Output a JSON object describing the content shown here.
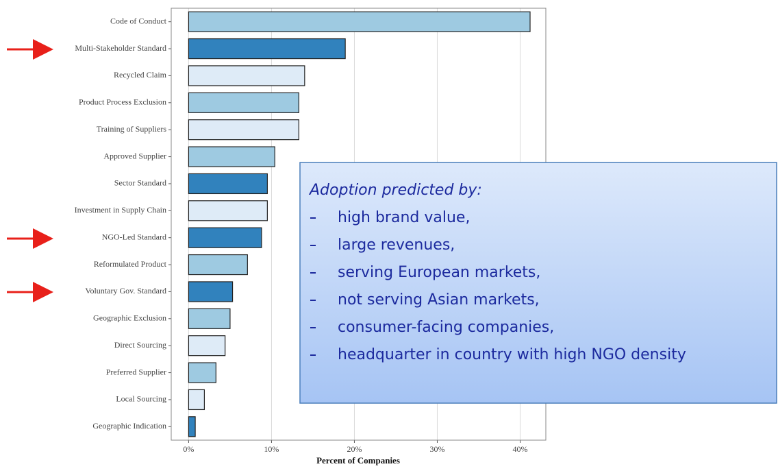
{
  "chart_data": {
    "type": "bar",
    "orientation": "horizontal",
    "categories": [
      "Code of Conduct",
      "Multi-Stakeholder Standard",
      "Recycled Claim",
      "Product Process Exclusion",
      "Training of Suppliers",
      "Approved Supplier",
      "Sector Standard",
      "Investment in Supply Chain",
      "NGO-Led Standard",
      "Reformulated Product",
      "Voluntary Gov. Standard",
      "Geographic Exclusion",
      "Direct Sourcing",
      "Preferred Supplier",
      "Local Sourcing",
      "Geographic Indication"
    ],
    "values": [
      41.2,
      18.9,
      14.0,
      13.3,
      13.3,
      10.4,
      9.5,
      9.5,
      8.8,
      7.1,
      5.3,
      5.0,
      4.4,
      3.3,
      1.9,
      0.8
    ],
    "colors": [
      "#9ecae1",
      "#3182bd",
      "#deebf7",
      "#9ecae1",
      "#deebf7",
      "#9ecae1",
      "#3182bd",
      "#deebf7",
      "#3182bd",
      "#9ecae1",
      "#3182bd",
      "#9ecae1",
      "#deebf7",
      "#9ecae1",
      "#deebf7",
      "#3182bd"
    ],
    "x_label": "Percent of Companies",
    "xlim": [
      -2.1,
      43.1
    ],
    "xticks": [
      {
        "value": 0,
        "label": "0%"
      },
      {
        "value": 10,
        "label": "10%"
      },
      {
        "value": 20,
        "label": "20%"
      },
      {
        "value": 30,
        "label": "30%"
      },
      {
        "value": 40,
        "label": "40%"
      }
    ],
    "grid": true,
    "annotation": {
      "title": "Adoption predicted by:",
      "items": [
        "high brand value,",
        "large revenues,",
        "serving European markets,",
        "not serving Asian markets,",
        "consumer-facing companies,",
        "headquarter in country with high NGO density"
      ]
    }
  }
}
